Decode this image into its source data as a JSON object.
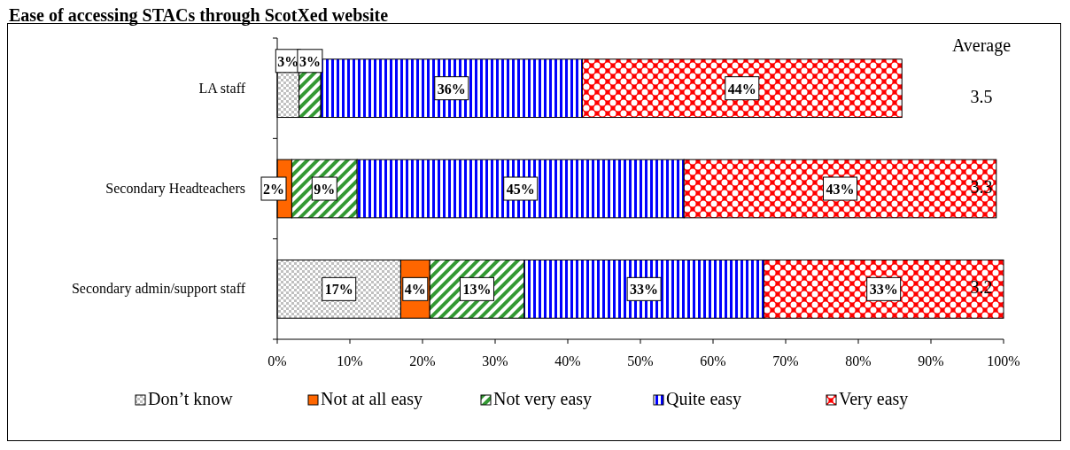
{
  "chart_data": {
    "type": "bar",
    "orientation": "horizontal",
    "stacked": true,
    "title": "Ease of accessing STACs through ScotXed website",
    "categories": [
      "LA staff",
      "Secondary Headteachers",
      "Secondary admin/support staff"
    ],
    "series": [
      {
        "name": "Don’t know",
        "color": "#c0c0c0",
        "values": [
          3,
          0,
          17
        ],
        "value_labels": [
          "3%",
          null,
          "17%"
        ]
      },
      {
        "name": "Not at all easy",
        "color": "#ff6600",
        "values": [
          0,
          2,
          4
        ],
        "value_labels": [
          null,
          "2%",
          "4%"
        ]
      },
      {
        "name": "Not very easy",
        "color": "#339933",
        "values": [
          3,
          9,
          13
        ],
        "value_labels": [
          "3%",
          "9%",
          "13%"
        ]
      },
      {
        "name": "Quite easy",
        "color": "#0000ff",
        "values": [
          36,
          45,
          33
        ],
        "value_labels": [
          "36%",
          "45%",
          "33%"
        ]
      },
      {
        "name": "Very easy",
        "color": "#ff0000",
        "values": [
          44,
          43,
          33
        ],
        "value_labels": [
          "44%",
          "43%",
          "33%"
        ]
      }
    ],
    "xlim": [
      0,
      100
    ],
    "xticks": [
      {
        "value": 0,
        "label": "0%"
      },
      {
        "value": 10,
        "label": "10%"
      },
      {
        "value": 20,
        "label": "20%"
      },
      {
        "value": 30,
        "label": "30%"
      },
      {
        "value": 40,
        "label": "40%"
      },
      {
        "value": 50,
        "label": "50%"
      },
      {
        "value": 60,
        "label": "60%"
      },
      {
        "value": 70,
        "label": "70%"
      },
      {
        "value": 80,
        "label": "80%"
      },
      {
        "value": 90,
        "label": "90%"
      },
      {
        "value": 100,
        "label": "100%"
      }
    ],
    "annotations": [
      "Average",
      "3.5",
      "3.3",
      "3.2"
    ],
    "legend": "bottom",
    "grid": false
  }
}
